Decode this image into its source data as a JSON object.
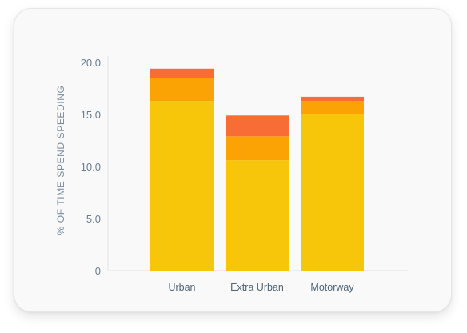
{
  "chart_data": {
    "type": "bar",
    "stacked": true,
    "title": "",
    "xlabel": "",
    "ylabel": "% OF TIME SPEND SPEEDING",
    "ylim": [
      0,
      20
    ],
    "yticks": [
      0,
      5,
      10,
      15,
      20
    ],
    "ytick_labels": [
      "0",
      "5.0",
      "10.0",
      "15.0",
      "20.0"
    ],
    "categories": [
      "Urban",
      "Extra Urban",
      "Motorway"
    ],
    "series": [
      {
        "color": "#f7c50a",
        "values": [
          16.3,
          10.6,
          15.0
        ]
      },
      {
        "color": "#fba305",
        "values": [
          2.2,
          2.3,
          1.3
        ]
      },
      {
        "color": "#f86d35",
        "values": [
          0.9,
          2.0,
          0.4
        ]
      }
    ],
    "grid": false,
    "legend": "none"
  }
}
